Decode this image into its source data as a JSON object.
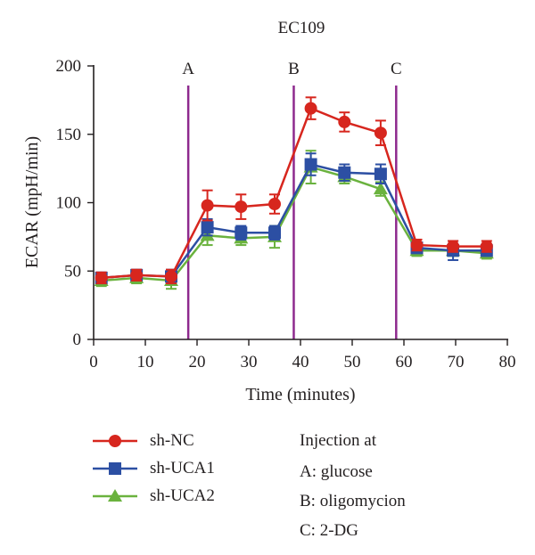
{
  "chart_data": {
    "type": "line",
    "title": "EC109",
    "xlabel": "Time (minutes)",
    "ylabel": "ECAR (mpH/min)",
    "xlim": [
      0,
      80
    ],
    "ylim": [
      0,
      200
    ],
    "x_ticks": [
      0,
      10,
      20,
      30,
      40,
      50,
      60,
      70,
      80
    ],
    "y_ticks": [
      0,
      50,
      100,
      150,
      200
    ],
    "grid": false,
    "legend_position": "bottom-left",
    "injections": [
      {
        "label": "A",
        "x": 18.3,
        "color": "#8e2a8e"
      },
      {
        "label": "B",
        "x": 38.7,
        "color": "#8e2a8e"
      },
      {
        "label": "C",
        "x": 58.5,
        "color": "#8e2a8e"
      }
    ],
    "series": [
      {
        "name": "sh-NC",
        "color": "#d7261e",
        "marker": "circle",
        "x": [
          1.5,
          8.3,
          15,
          22,
          28.5,
          35,
          42,
          48.5,
          55.5,
          62.5,
          69.5,
          76
        ],
        "y": [
          45,
          47,
          46,
          98,
          97,
          99,
          169,
          159,
          151,
          69,
          68,
          68
        ],
        "error": [
          4,
          4,
          5,
          11,
          9,
          7,
          8,
          7,
          9,
          4,
          4,
          4
        ]
      },
      {
        "name": "sh-UCA1",
        "color": "#2c4fa3",
        "marker": "square",
        "x": [
          1.5,
          8.3,
          15,
          22,
          28.5,
          35,
          42,
          48.5,
          55.5,
          62.5,
          69.5,
          76
        ],
        "y": [
          45,
          47,
          46,
          82,
          78,
          78,
          128,
          122,
          121,
          67,
          65,
          65
        ],
        "error": [
          4,
          4,
          5,
          6,
          5,
          5,
          8,
          6,
          7,
          4,
          7,
          4
        ]
      },
      {
        "name": "sh-UCA2",
        "color": "#6ab23e",
        "marker": "triangle",
        "x": [
          1.5,
          8.3,
          15,
          22,
          28.5,
          35,
          42,
          48.5,
          55.5,
          62.5,
          69.5,
          76
        ],
        "y": [
          43,
          45,
          43,
          76,
          74,
          75,
          126,
          119,
          110,
          65,
          65,
          63
        ],
        "error": [
          4,
          4,
          6,
          7,
          5,
          8,
          12,
          5,
          5,
          4,
          4,
          4
        ]
      }
    ]
  },
  "notes": {
    "heading": "Injection at",
    "lines": [
      "A: glucose",
      "B: oligomycion",
      "C: 2-DG"
    ]
  }
}
